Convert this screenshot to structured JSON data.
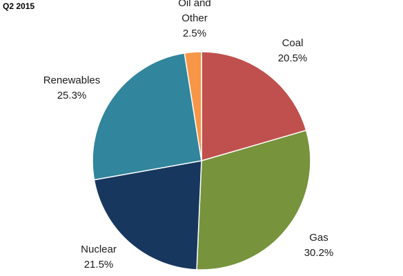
{
  "chart_data": {
    "type": "pie",
    "title": "Q2 2015",
    "start_angle_deg": 0,
    "direction": "clockwise",
    "slices": [
      {
        "label_lines": [
          "Coal"
        ],
        "value": 20.5,
        "value_text": "20.5%",
        "color": "#c0504d"
      },
      {
        "label_lines": [
          "Gas"
        ],
        "value": 30.2,
        "value_text": "30.2%",
        "color": "#77933c"
      },
      {
        "label_lines": [
          "Nuclear"
        ],
        "value": 21.5,
        "value_text": "21.5%",
        "color": "#17375e"
      },
      {
        "label_lines": [
          "Renewables"
        ],
        "value": 25.3,
        "value_text": "25.3%",
        "color": "#31859c"
      },
      {
        "label_lines": [
          "Oil and",
          "Other"
        ],
        "value": 2.5,
        "value_text": "2.5%",
        "color": "#f79646"
      }
    ]
  }
}
